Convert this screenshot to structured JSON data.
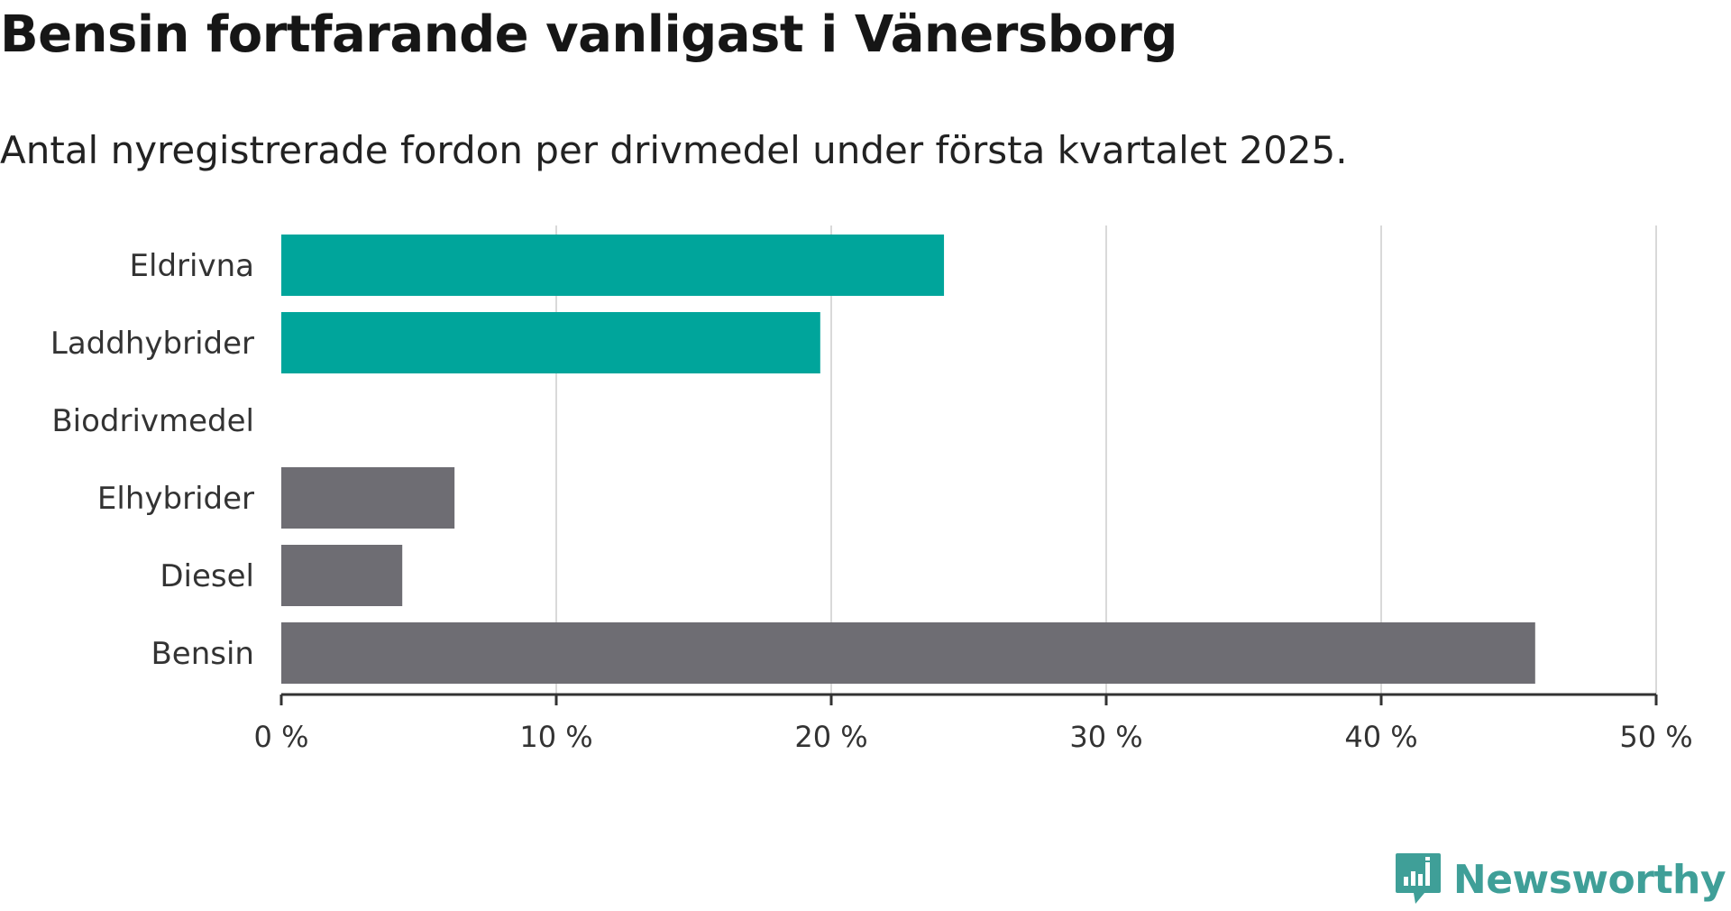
{
  "chart_data": {
    "type": "bar",
    "orientation": "horizontal",
    "title": "Bensin fortfarande vanligast i Vänersborg",
    "subtitle": "Antal nyregistrerade fordon per drivmedel under första kvartalet 2025.",
    "categories": [
      "Eldrivna",
      "Laddhybrider",
      "Biodrivmedel",
      "Elhybrider",
      "Diesel",
      "Bensin"
    ],
    "values": [
      24.1,
      19.6,
      0,
      6.3,
      4.4,
      45.6
    ],
    "colors": [
      "#00a59b",
      "#00a59b",
      "#00a59b",
      "#6e6d73",
      "#6e6d73",
      "#6e6d73"
    ],
    "xlim": [
      0,
      50
    ],
    "ticks": [
      0,
      10,
      20,
      30,
      40,
      50
    ],
    "tick_labels": [
      "0 %",
      "10 %",
      "20 %",
      "30 %",
      "40 %",
      "50 %"
    ],
    "xlabel": "",
    "ylabel": "",
    "grid": true
  },
  "logo": {
    "text": "Newsworthy",
    "icon": "newsworthy-logo-icon",
    "color": "#3f9f98"
  }
}
